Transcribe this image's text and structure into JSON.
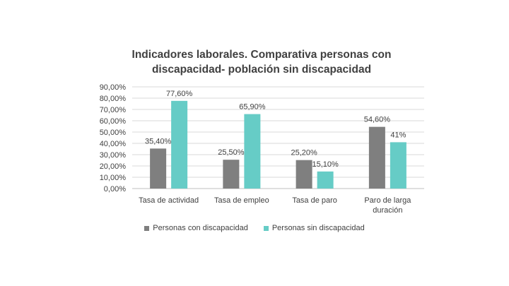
{
  "chart_data": {
    "type": "bar",
    "title_lines": [
      "Indicadores laborales. Comparativa personas con",
      "discapacidad- población sin discapacidad"
    ],
    "categories": [
      [
        "Tasa de actividad"
      ],
      [
        "Tasa de empleo"
      ],
      [
        "Tasa de paro"
      ],
      [
        "Paro de larga",
        "duración"
      ]
    ],
    "series": [
      {
        "name": "Personas con discapacidad",
        "color": "#7f7f7f",
        "values": [
          35.4,
          25.5,
          25.2,
          54.6
        ],
        "labels": [
          "35,40%",
          "25,50%",
          "25,20%",
          "54,60%"
        ]
      },
      {
        "name": "Personas sin discapacidad",
        "color": "#66ccc6",
        "values": [
          77.6,
          65.9,
          15.1,
          41
        ],
        "labels": [
          "77,60%",
          "65,90%",
          "15,10%",
          "41%"
        ]
      }
    ],
    "ylim": [
      0,
      90
    ],
    "yticks": [
      "0,00%",
      "10,00%",
      "20,00%",
      "30,00%",
      "40,00%",
      "50,00%",
      "60,00%",
      "70,00%",
      "80,00%",
      "90,00%"
    ],
    "grid": true,
    "legend_position": "bottom"
  }
}
